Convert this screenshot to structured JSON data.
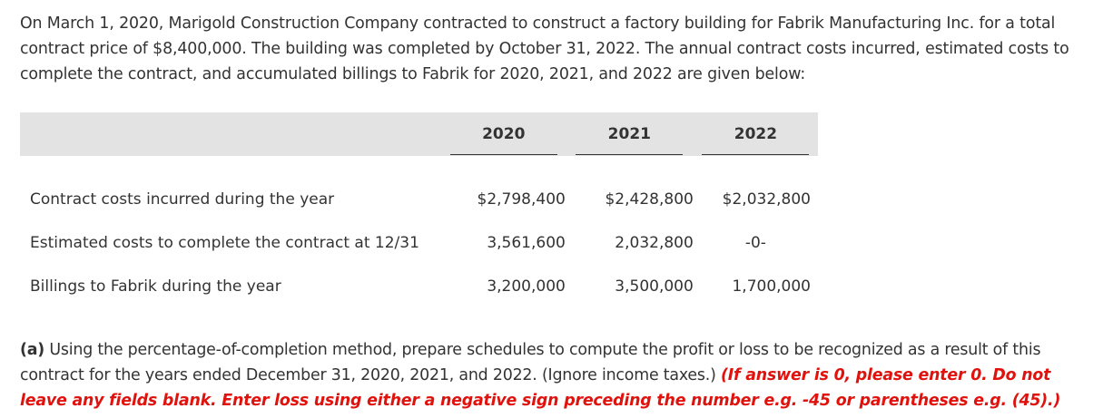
{
  "intro_text": "On March 1, 2020, Marigold Construction Company contracted to construct a factory building for Fabrik Manufacturing Inc. for a total contract price of $8,400,000. The building was completed by October 31, 2022. The annual contract costs incurred, estimated costs to complete the contract, and accumulated billings to Fabrik for 2020, 2021, and 2022 are given below:",
  "table": {
    "columns": [
      "2020",
      "2021",
      "2022"
    ],
    "rows": [
      {
        "label": "Contract costs incurred during the year",
        "values": [
          "$2,798,400",
          "$2,428,800",
          "$2,032,800"
        ]
      },
      {
        "label": "Estimated costs to complete the contract at 12/31",
        "values": [
          "3,561,600",
          "2,032,800",
          "-0-"
        ]
      },
      {
        "label": "Billings to Fabrik during the year",
        "values": [
          "3,200,000",
          "3,500,000",
          "1,700,000"
        ]
      }
    ]
  },
  "question": {
    "label": "(a)",
    "text": " Using the percentage-of-completion method, prepare schedules to compute the profit or loss to be recognized as a result of this contract for the years ended December 31, 2020, 2021, and 2022. (Ignore income taxes.) ",
    "note": "(If answer is 0, please enter 0. Do not leave any fields blank. Enter loss using either a negative sign preceding the number e.g. -45 or parentheses e.g. (45).)"
  }
}
